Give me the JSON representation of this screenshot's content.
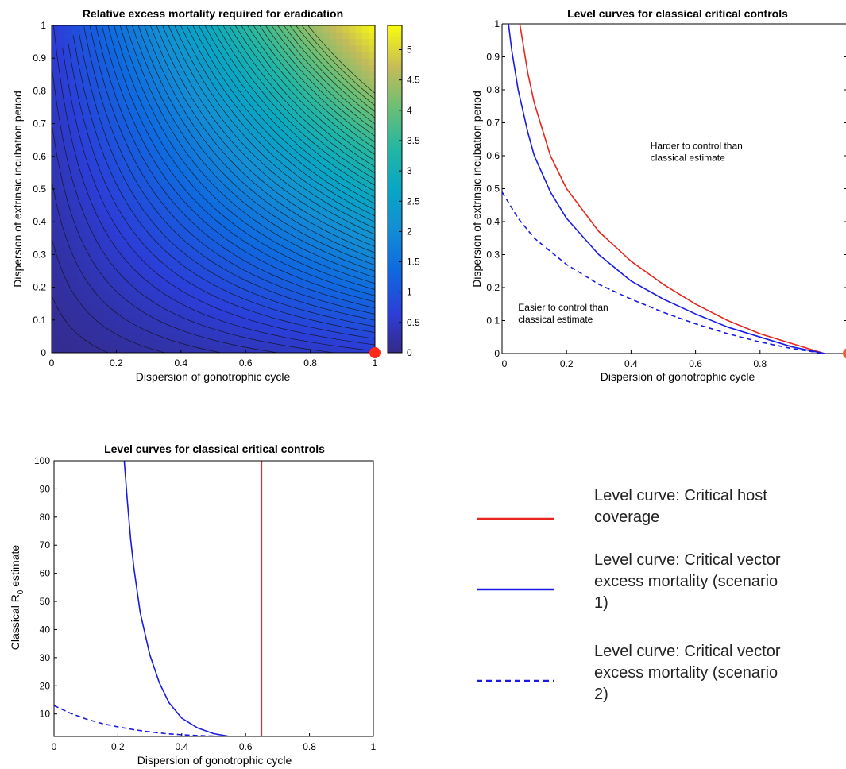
{
  "chart_data": [
    {
      "type": "heatmap",
      "title": "Relative excess mortality required for eradication",
      "xlabel": "Dispersion of gonotrophic cycle",
      "ylabel": "Dispersion of extrinsic incubation period",
      "xlim": [
        0,
        1
      ],
      "ylim": [
        0,
        1
      ],
      "xticks": [
        "0",
        "0.2",
        "0.4",
        "0.6",
        "0.8",
        "1"
      ],
      "yticks": [
        "0",
        "0.1",
        "0.2",
        "0.3",
        "0.4",
        "0.5",
        "0.6",
        "0.7",
        "0.8",
        "0.9",
        "1"
      ],
      "colorbar": {
        "range": [
          0,
          5.4
        ],
        "ticks": [
          "0",
          "0.5",
          "1",
          "1.5",
          "2",
          "2.5",
          "3",
          "3.5",
          "4",
          "4.5",
          "5"
        ],
        "colormap": "parula"
      },
      "grid": false,
      "contour_lines": true,
      "marker": {
        "x": 1,
        "y": 0,
        "color": "#ff2a1a"
      }
    },
    {
      "type": "line",
      "title": "Level curves for classical critical controls",
      "xlabel": "Dispersion of gonotrophic cycle",
      "ylabel": "Dispersion of extrinsic incubation period",
      "xlim": [
        0,
        1
      ],
      "ylim": [
        0,
        1
      ],
      "xticks": [
        "0",
        "0.2",
        "0.4",
        "0.6",
        "0.8"
      ],
      "yticks": [
        "0",
        "0.1",
        "0.2",
        "0.3",
        "0.4",
        "0.5",
        "0.6",
        "0.7",
        "0.8",
        "0.9",
        "1"
      ],
      "series": [
        {
          "color": "#e8261d",
          "style": "solid",
          "x": [
            0.055,
            0.06,
            0.08,
            0.1,
            0.15,
            0.2,
            0.3,
            0.4,
            0.5,
            0.6,
            0.7,
            0.8,
            0.9,
            1.0
          ],
          "y": [
            1.0,
            0.97,
            0.85,
            0.76,
            0.6,
            0.5,
            0.37,
            0.28,
            0.21,
            0.15,
            0.1,
            0.06,
            0.03,
            0.0
          ]
        },
        {
          "color": "#1a1ae6",
          "style": "solid",
          "x": [
            0.02,
            0.03,
            0.05,
            0.08,
            0.1,
            0.15,
            0.2,
            0.3,
            0.4,
            0.5,
            0.6,
            0.7,
            0.8,
            0.9,
            1.0
          ],
          "y": [
            1.0,
            0.92,
            0.8,
            0.67,
            0.6,
            0.49,
            0.41,
            0.3,
            0.22,
            0.165,
            0.12,
            0.08,
            0.05,
            0.02,
            0.0
          ]
        },
        {
          "color": "#1a1ae6",
          "style": "dashed",
          "x": [
            0.0,
            0.05,
            0.1,
            0.15,
            0.2,
            0.3,
            0.4,
            0.5,
            0.6,
            0.7,
            0.8,
            0.9,
            1.0
          ],
          "y": [
            0.49,
            0.41,
            0.35,
            0.31,
            0.27,
            0.21,
            0.165,
            0.125,
            0.09,
            0.06,
            0.035,
            0.015,
            0.0
          ]
        }
      ],
      "annotations": [
        {
          "text": [
            "Harder to control than",
            "classical estimate"
          ],
          "x": 0.46,
          "y": 0.62
        },
        {
          "text": [
            "Easier to control than",
            "classical estimate"
          ],
          "x": 0.05,
          "y": 0.13
        }
      ],
      "marker": {
        "x": 1,
        "y": 0,
        "color": "#ff2a1a"
      }
    },
    {
      "type": "line",
      "title": "Level curves for classical critical controls",
      "xlabel": "Dispersion of gonotrophic cycle",
      "ylabel": "Classical R0 estimate",
      "ylabel_parts": [
        "Classical R",
        "0",
        " estimate"
      ],
      "xlim": [
        0,
        1
      ],
      "ylim": [
        2,
        100
      ],
      "xticks": [
        "0",
        "0.2",
        "0.4",
        "0.6",
        "0.8",
        "1"
      ],
      "yticks": [
        "10",
        "20",
        "30",
        "40",
        "50",
        "60",
        "70",
        "80",
        "90",
        "100"
      ],
      "series": [
        {
          "color": "#e8261d",
          "style": "solid",
          "x": [
            0.65,
            0.65
          ],
          "y": [
            2,
            100
          ]
        },
        {
          "color": "#1a1ae6",
          "style": "solid",
          "x": [
            0.22,
            0.23,
            0.24,
            0.25,
            0.27,
            0.3,
            0.33,
            0.36,
            0.4,
            0.45,
            0.5,
            0.55
          ],
          "y": [
            100,
            85,
            72,
            62,
            46,
            31,
            21,
            14,
            8.5,
            5,
            3,
            2
          ]
        },
        {
          "color": "#1a1ae6",
          "style": "dashed",
          "x": [
            0.0,
            0.05,
            0.1,
            0.15,
            0.2,
            0.25,
            0.3,
            0.35,
            0.4,
            0.45,
            0.5,
            0.55
          ],
          "y": [
            13,
            10.3,
            8.2,
            6.6,
            5.4,
            4.4,
            3.6,
            3.0,
            2.6,
            2.3,
            2.1,
            2.0
          ]
        }
      ]
    }
  ],
  "legend": {
    "items": [
      {
        "color": "#e8261d",
        "style": "solid",
        "lines": [
          "Level curve: Critical host",
          "coverage"
        ]
      },
      {
        "color": "#1a1ae6",
        "style": "solid",
        "lines": [
          "Level curve: Critical vector",
          "excess mortality (scenario",
          "1)"
        ]
      },
      {
        "color": "#1a1ae6",
        "style": "dashed",
        "lines": [
          "Level curve: Critical vector",
          "excess mortality (scenario",
          "2)"
        ]
      }
    ]
  }
}
